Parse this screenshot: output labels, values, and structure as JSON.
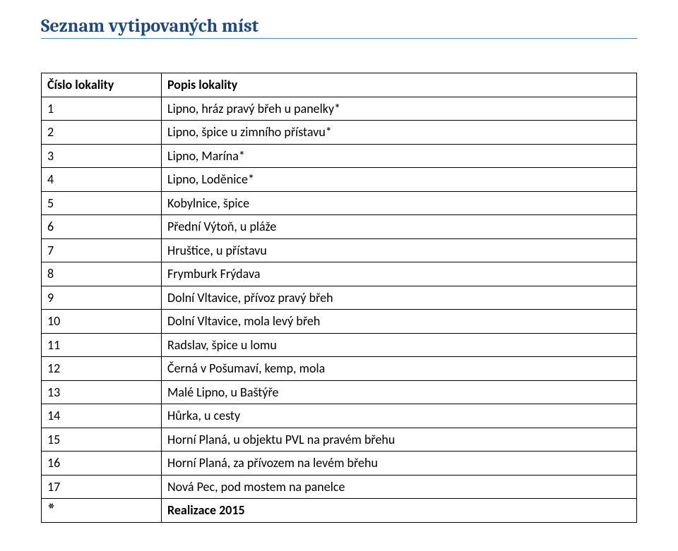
{
  "title": {
    "text": "Seznam vytipovaných míst",
    "color": "#1f497d",
    "underline_color": "#4f81bd"
  },
  "table": {
    "border_color": "#000000",
    "columns": [
      "Číslo lokality",
      "Popis lokality"
    ],
    "rows": [
      [
        "1",
        "Lipno, hráz pravý břeh u panelky*"
      ],
      [
        "2",
        "Lipno, špice u zimního přístavu*"
      ],
      [
        "3",
        "Lipno, Marína*"
      ],
      [
        "4",
        "Lipno, Loděnice*"
      ],
      [
        "5",
        "Kobylnice, špice"
      ],
      [
        "6",
        "Přední Výtoň, u pláže"
      ],
      [
        "7",
        "Hruštice, u přístavu"
      ],
      [
        "8",
        "Frymburk Frýdava"
      ],
      [
        "9",
        "Dolní Vltavice, přívoz pravý břeh"
      ],
      [
        "10",
        "Dolní Vltavice, mola levý břeh"
      ],
      [
        "11",
        "Radslav, špice u lomu"
      ],
      [
        "12",
        "Černá v Pošumaví, kemp, mola"
      ],
      [
        "13",
        "Malé Lipno, u Baštýře"
      ],
      [
        "14",
        "Hůrka, u cesty"
      ],
      [
        "15",
        "Horní Planá,  u objektu PVL na pravém břehu"
      ],
      [
        "16",
        "Horní Planá, za přívozem na levém břehu"
      ],
      [
        "17",
        "Nová Pec, pod mostem na panelce"
      ]
    ],
    "footer": [
      "*",
      "Realizace 2015"
    ]
  }
}
